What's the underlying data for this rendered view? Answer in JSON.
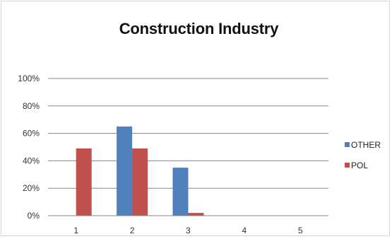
{
  "chart_data": {
    "type": "bar",
    "title": "Construction Industry",
    "xlabel": "",
    "ylabel": "",
    "categories": [
      "1",
      "2",
      "3",
      "4",
      "5"
    ],
    "y_ticks": [
      "0%",
      "20%",
      "40%",
      "60%",
      "80%",
      "100%"
    ],
    "ylim": [
      0,
      1
    ],
    "grid": true,
    "legend_position": "right",
    "series": [
      {
        "name": "OTHER",
        "color": "#4f81bd",
        "values": [
          0,
          0.65,
          0.35,
          0,
          0
        ]
      },
      {
        "name": "POL",
        "color": "#c0504d",
        "values": [
          0.49,
          0.49,
          0.02,
          0,
          0
        ]
      }
    ]
  }
}
